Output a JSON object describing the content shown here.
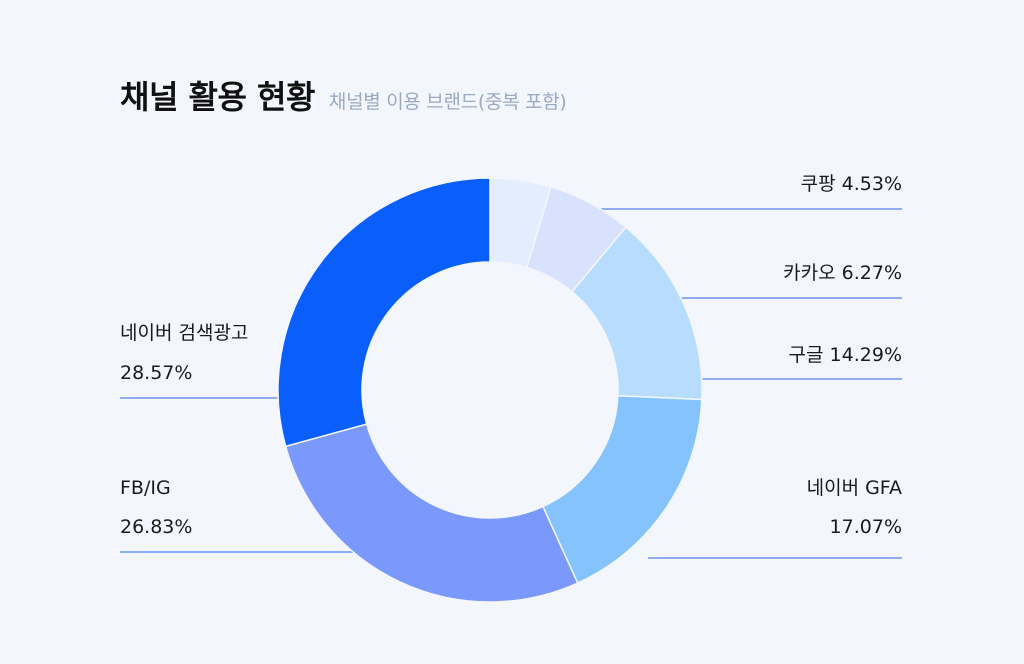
{
  "header": {
    "title": "채널 활용 현황",
    "subtitle": "채널별 이용 브랜드(중복 포함)"
  },
  "chart_data": {
    "type": "pie",
    "variant": "donut",
    "slices": [
      {
        "label": "쿠팡",
        "value": 4.53,
        "display": "쿠팡 4.53%",
        "color": "#e3edfd",
        "label_side": "right"
      },
      {
        "label": "카카오",
        "value": 6.27,
        "display": "카카오 6.27%",
        "color": "#d9e2fd",
        "label_side": "right"
      },
      {
        "label": "구글",
        "value": 14.29,
        "display": "구글 14.29%",
        "color": "#b8dcfd",
        "label_side": "right"
      },
      {
        "label": "네이버 GFA",
        "value": 17.07,
        "display": [
          "네이버 GFA",
          "17.07%"
        ],
        "color": "#84c3fd",
        "label_side": "right"
      },
      {
        "label": "FB/IG",
        "value": 26.83,
        "display": [
          "FB/IG",
          "26.83%"
        ],
        "color": "#7b98fd",
        "label_side": "left"
      },
      {
        "label": "네이버 검색광고",
        "value": 28.57,
        "display": [
          "네이버 검색광고",
          "28.57%"
        ],
        "color": "#0a5ffc",
        "label_side": "left"
      }
    ],
    "leader_color": "#6f93f5"
  }
}
